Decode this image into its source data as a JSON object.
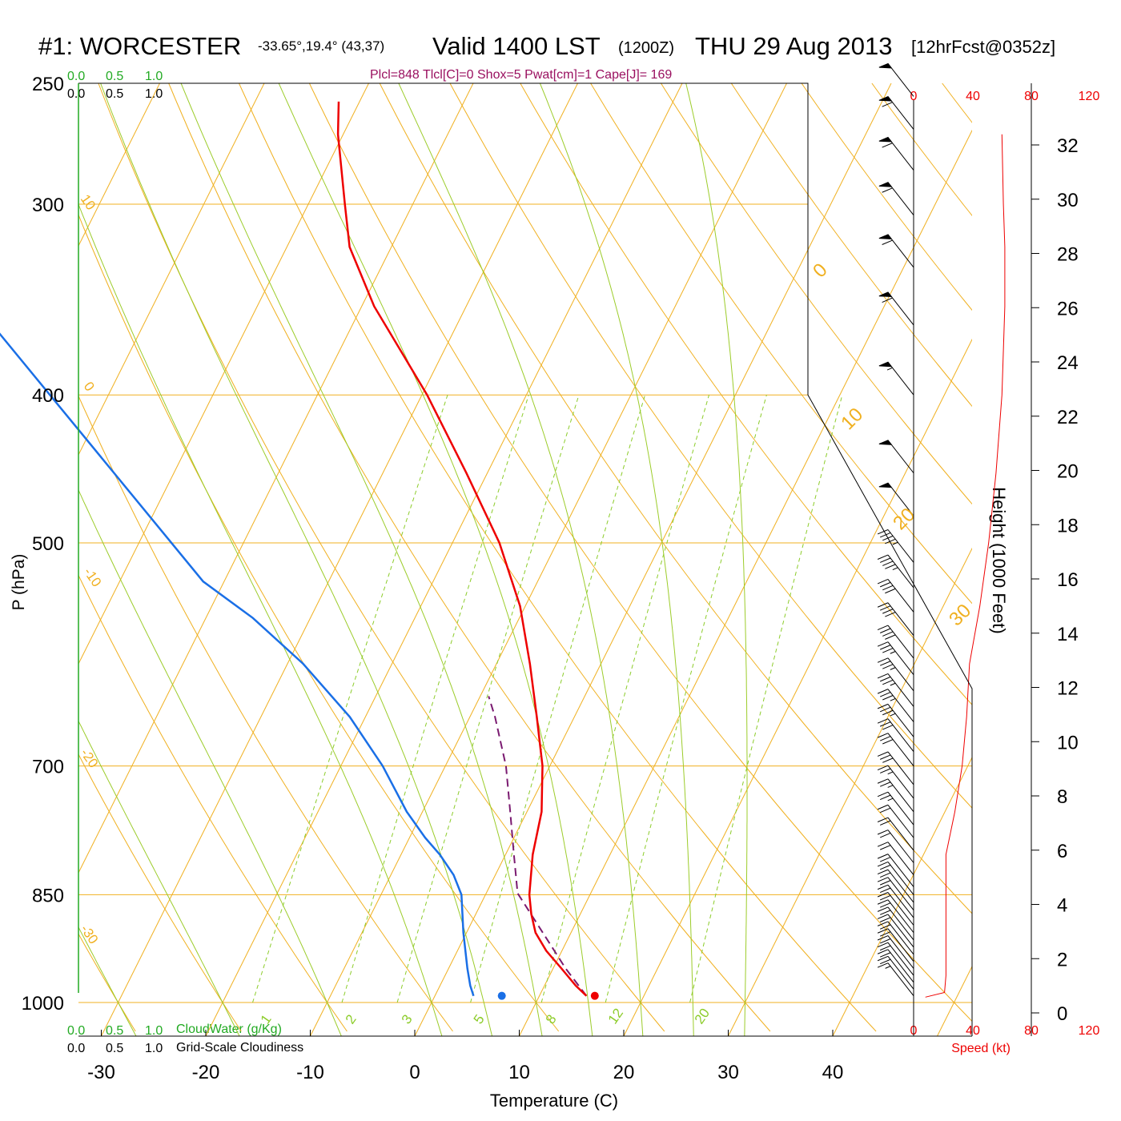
{
  "header": {
    "station": "#1: WORCESTER",
    "coords": "-33.65°,19.4° (43,37)",
    "valid": "Valid 1400 LST",
    "zulu": "(1200Z)",
    "date": "THU 29 Aug 2013",
    "fcst": "[12hrFcst@0352z]",
    "indices": "Plcl=848 Tlcl[C]=0 Shox=5 Pwat[cm]=1 Cape[J]= 169"
  },
  "scales": {
    "cloud_water_ticks": [
      "0.0",
      "0.5",
      "1.0"
    ],
    "cloudiness_ticks": [
      "0.0",
      "0.5",
      "1.0"
    ],
    "cloud_water_label": "CloudWater (g/Kg)",
    "cloudiness_label": "Grid-Scale Cloudiness",
    "speed_ticks": [
      "0",
      "40",
      "80",
      "120"
    ],
    "speed_label": "Speed (kt)"
  },
  "colors": {
    "temperature": "#ee0000",
    "dewpoint": "#1a6fe6",
    "parcel": "#7a1a70",
    "isotherm": "#f0b020",
    "dry_adiabat": "#f0b020",
    "moist_adiabat": "#9ccc2a",
    "mixing_ratio": "#8ccc2a",
    "cloud_scale": "#22aa22",
    "speed": "#ee0000",
    "indices": "#9a1060"
  },
  "chart_data": {
    "type": "skew-t",
    "xlabel": "Temperature (C)",
    "ylabel": "P (hPa)",
    "y2label": "Height (1000 Feet)",
    "x_ticks": [
      -30,
      -20,
      -10,
      0,
      10,
      20,
      30,
      40
    ],
    "p_ticks": [
      250,
      300,
      400,
      500,
      700,
      850,
      1000
    ],
    "height_ticks": [
      0,
      2,
      4,
      6,
      8,
      10,
      12,
      14,
      16,
      18,
      20,
      22,
      24,
      26,
      28,
      30,
      32
    ],
    "dry_adiabat_labels": [
      "10",
      "0",
      "-10",
      "-20",
      "-30"
    ],
    "isotherm_labels": [
      "0",
      "10",
      "20",
      "30"
    ],
    "mixing_ratio_labels": [
      "1",
      "2",
      "3",
      "5",
      "8",
      "12",
      "20"
    ],
    "mixing_ratios": [
      1,
      2,
      3,
      5,
      8,
      12,
      20
    ],
    "moist_adiabats_thetaw": [
      -30,
      -20,
      -10,
      0,
      5,
      10,
      15,
      20,
      25,
      30
    ],
    "temperature": [
      {
        "p": 990,
        "t": 14.5
      },
      {
        "p": 975,
        "t": 13.0
      },
      {
        "p": 950,
        "t": 10.8
      },
      {
        "p": 925,
        "t": 8.5
      },
      {
        "p": 900,
        "t": 6.6
      },
      {
        "p": 875,
        "t": 5.3
      },
      {
        "p": 850,
        "t": 4.2
      },
      {
        "p": 800,
        "t": 2.6
      },
      {
        "p": 750,
        "t": 1.4
      },
      {
        "p": 700,
        "t": -0.7
      },
      {
        "p": 650,
        "t": -3.6
      },
      {
        "p": 600,
        "t": -6.8
      },
      {
        "p": 550,
        "t": -10.5
      },
      {
        "p": 500,
        "t": -15.5
      },
      {
        "p": 450,
        "t": -22.0
      },
      {
        "p": 400,
        "t": -29.5
      },
      {
        "p": 350,
        "t": -38.8
      },
      {
        "p": 320,
        "t": -44.0
      },
      {
        "p": 300,
        "t": -46.5
      },
      {
        "p": 270,
        "t": -50.5
      },
      {
        "p": 257,
        "t": -52.0
      }
    ],
    "dewpoint": [
      {
        "p": 990,
        "t": 3.7
      },
      {
        "p": 975,
        "t": 2.9
      },
      {
        "p": 950,
        "t": 1.8
      },
      {
        "p": 900,
        "t": -0.3
      },
      {
        "p": 850,
        "t": -2.3
      },
      {
        "p": 825,
        "t": -4.0
      },
      {
        "p": 800,
        "t": -6.3
      },
      {
        "p": 780,
        "t": -8.5
      },
      {
        "p": 750,
        "t": -11.5
      },
      {
        "p": 700,
        "t": -16.0
      },
      {
        "p": 650,
        "t": -21.5
      },
      {
        "p": 600,
        "t": -28.5
      },
      {
        "p": 560,
        "t": -35.5
      },
      {
        "p": 530,
        "t": -42.0
      },
      {
        "p": 345,
        "t": -78.0
      },
      {
        "p": 300,
        "t": -86.0
      },
      {
        "p": 260,
        "t": -92.0
      }
    ],
    "parcel": [
      {
        "p": 990,
        "t": 14.5
      },
      {
        "p": 950,
        "t": 11.2
      },
      {
        "p": 900,
        "t": 7.3
      },
      {
        "p": 848,
        "t": 3.0
      },
      {
        "p": 800,
        "t": 0.8
      },
      {
        "p": 750,
        "t": -1.6
      },
      {
        "p": 700,
        "t": -4.2
      },
      {
        "p": 650,
        "t": -7.6
      },
      {
        "p": 630,
        "t": -9.2
      }
    ],
    "surface_markers": {
      "temperature": 15.3,
      "dewpoint": 6.4,
      "p": 990
    },
    "wind_speed_profile": [
      {
        "p": 992,
        "kt": 8
      },
      {
        "p": 985,
        "kt": 21
      },
      {
        "p": 960,
        "kt": 22
      },
      {
        "p": 900,
        "kt": 22
      },
      {
        "p": 850,
        "kt": 22
      },
      {
        "p": 800,
        "kt": 22
      },
      {
        "p": 750,
        "kt": 28
      },
      {
        "p": 700,
        "kt": 33
      },
      {
        "p": 650,
        "kt": 36
      },
      {
        "p": 600,
        "kt": 38
      },
      {
        "p": 550,
        "kt": 45
      },
      {
        "p": 500,
        "kt": 51
      },
      {
        "p": 450,
        "kt": 56
      },
      {
        "p": 400,
        "kt": 60
      },
      {
        "p": 350,
        "kt": 62
      },
      {
        "p": 320,
        "kt": 62
      },
      {
        "p": 300,
        "kt": 61
      },
      {
        "p": 270,
        "kt": 60
      }
    ],
    "wind_barbs": [
      {
        "p": 990,
        "kt": 15
      },
      {
        "p": 980,
        "kt": 20
      },
      {
        "p": 970,
        "kt": 20
      },
      {
        "p": 960,
        "kt": 20
      },
      {
        "p": 950,
        "kt": 20
      },
      {
        "p": 940,
        "kt": 20
      },
      {
        "p": 930,
        "kt": 20
      },
      {
        "p": 920,
        "kt": 20
      },
      {
        "p": 910,
        "kt": 20
      },
      {
        "p": 900,
        "kt": 20
      },
      {
        "p": 890,
        "kt": 20
      },
      {
        "p": 880,
        "kt": 20
      },
      {
        "p": 870,
        "kt": 20
      },
      {
        "p": 860,
        "kt": 20
      },
      {
        "p": 850,
        "kt": 20
      },
      {
        "p": 840,
        "kt": 20
      },
      {
        "p": 825,
        "kt": 20
      },
      {
        "p": 810,
        "kt": 20
      },
      {
        "p": 795,
        "kt": 20
      },
      {
        "p": 780,
        "kt": 20
      },
      {
        "p": 765,
        "kt": 25
      },
      {
        "p": 750,
        "kt": 25
      },
      {
        "p": 735,
        "kt": 25
      },
      {
        "p": 720,
        "kt": 30
      },
      {
        "p": 700,
        "kt": 30
      },
      {
        "p": 685,
        "kt": 30
      },
      {
        "p": 670,
        "kt": 35
      },
      {
        "p": 655,
        "kt": 35
      },
      {
        "p": 640,
        "kt": 35
      },
      {
        "p": 625,
        "kt": 35
      },
      {
        "p": 610,
        "kt": 35
      },
      {
        "p": 595,
        "kt": 40
      },
      {
        "p": 575,
        "kt": 40
      },
      {
        "p": 555,
        "kt": 40
      },
      {
        "p": 535,
        "kt": 45
      },
      {
        "p": 515,
        "kt": 45
      },
      {
        "p": 480,
        "kt": 50
      },
      {
        "p": 450,
        "kt": 50
      },
      {
        "p": 400,
        "kt": 55
      },
      {
        "p": 360,
        "kt": 60
      },
      {
        "p": 330,
        "kt": 60
      },
      {
        "p": 305,
        "kt": 60
      },
      {
        "p": 285,
        "kt": 60
      },
      {
        "p": 268,
        "kt": 60
      },
      {
        "p": 255,
        "kt": 50
      }
    ]
  }
}
